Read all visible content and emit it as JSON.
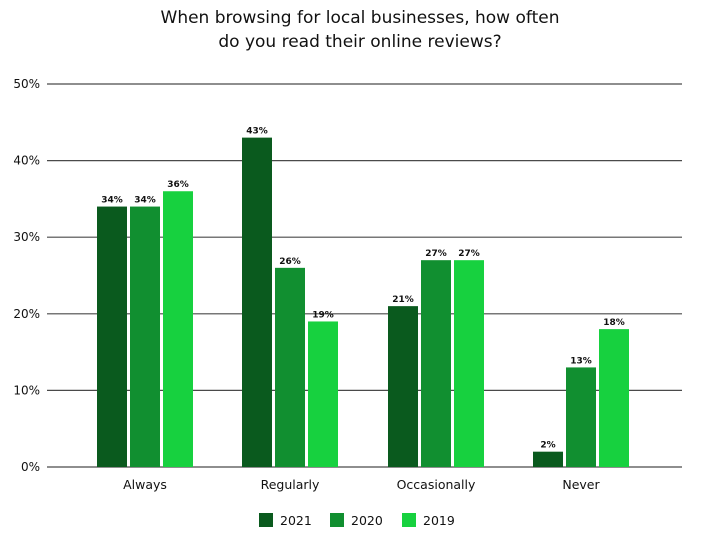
{
  "chart_data": {
    "type": "bar",
    "title_lines": [
      "When browsing for local businesses, how often",
      "do you read their online reviews?"
    ],
    "categories": [
      "Always",
      "Regularly",
      "Occasionally",
      "Never"
    ],
    "series": [
      {
        "name": "2021",
        "color": "#0a5a1e",
        "values": [
          34,
          43,
          21,
          2
        ]
      },
      {
        "name": "2020",
        "color": "#118f30",
        "values": [
          34,
          26,
          27,
          13
        ]
      },
      {
        "name": "2019",
        "color": "#17d13f",
        "values": [
          36,
          19,
          27,
          18
        ]
      }
    ],
    "data_labels": [
      [
        "34%",
        "43%",
        "21%",
        "2%"
      ],
      [
        "34%",
        "26%",
        "27%",
        "13%"
      ],
      [
        "36%",
        "19%",
        "27%",
        "18%"
      ]
    ],
    "y_ticks": [
      0,
      10,
      20,
      30,
      40,
      50
    ],
    "y_tick_labels": [
      "0%",
      "10%",
      "20%",
      "30%",
      "40%",
      "50%"
    ],
    "ylim": [
      0,
      50
    ],
    "grid": true,
    "legend_position": "bottom-center",
    "grid_color": "#4a4a4a"
  }
}
